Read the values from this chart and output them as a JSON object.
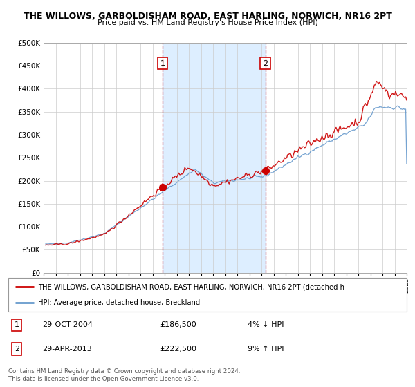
{
  "title": "THE WILLOWS, GARBOLDISHAM ROAD, EAST HARLING, NORWICH, NR16 2PT",
  "subtitle": "Price paid vs. HM Land Registry's House Price Index (HPI)",
  "legend_line1": "THE WILLOWS, GARBOLDISHAM ROAD, EAST HARLING, NORWICH, NR16 2PT (detached h",
  "legend_line2": "HPI: Average price, detached house, Breckland",
  "annotation1_date": "29-OCT-2004",
  "annotation1_price": "£186,500",
  "annotation1_hpi": "4% ↓ HPI",
  "annotation2_date": "29-APR-2013",
  "annotation2_price": "£222,500",
  "annotation2_hpi": "9% ↑ HPI",
  "footer": "Contains HM Land Registry data © Crown copyright and database right 2024.\nThis data is licensed under the Open Government Licence v3.0.",
  "red_color": "#cc0000",
  "blue_color": "#6699cc",
  "shading_color": "#ddeeff",
  "background_color": "#ffffff",
  "grid_color": "#cccccc",
  "ylim": [
    0,
    500000
  ],
  "yticks": [
    0,
    50000,
    100000,
    150000,
    200000,
    250000,
    300000,
    350000,
    400000,
    450000,
    500000
  ],
  "marker1_x": 2004.83,
  "marker1_y": 186500,
  "marker2_x": 2013.33,
  "marker2_y": 222500,
  "vline1_x": 2004.83,
  "vline2_x": 2013.33,
  "xmin": 1995,
  "xmax": 2025
}
